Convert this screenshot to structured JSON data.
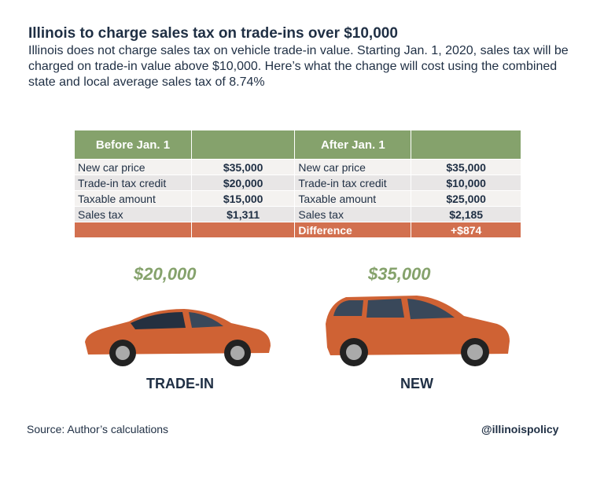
{
  "title": "Illinois to charge sales tax on trade-ins over $10,000",
  "subtitle": "Illinois does not charge sales tax on vehicle trade-in value. Starting Jan. 1, 2020, sales tax will be charged on trade-in value above $10,000. Here’s what the change will cost using the combined state and local average sales tax of 8.74%",
  "table": {
    "headers": [
      "Before Jan. 1",
      "",
      "After Jan. 1",
      ""
    ],
    "rows": [
      [
        "New car price",
        "$35,000",
        "New car price",
        "$35,000"
      ],
      [
        "Trade-in tax credit",
        "$20,000",
        "Trade-in tax credit",
        "$10,000"
      ],
      [
        "Taxable amount",
        "$15,000",
        "Taxable amount",
        "$25,000"
      ],
      [
        "Sales tax",
        "$1,311",
        "Sales tax",
        "$2,185"
      ]
    ],
    "difference": {
      "label": "Difference",
      "value": "+$874"
    }
  },
  "trade_in": {
    "price": "$20,000",
    "label": "TRADE-IN"
  },
  "new_car": {
    "price": "$35,000",
    "label": "NEW"
  },
  "source": "Source: Author’s calculations",
  "handle": "@illinoispolicy",
  "colors": {
    "green": "#85a26c",
    "orange": "#d2704f",
    "navy": "#1f2f44"
  }
}
